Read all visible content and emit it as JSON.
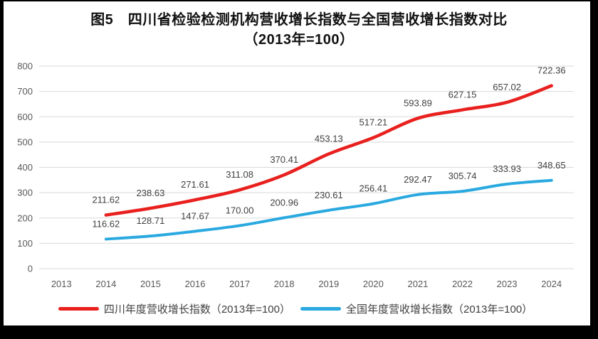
{
  "title": {
    "line1": "图5　四川省检验检测机构营收增长指数与全国营收增长指数对比",
    "line2": "（2013年=100）"
  },
  "chart_data": {
    "type": "line",
    "title": "图5 四川省检验检测机构营收增长指数与全国营收增长指数对比（2013年=100）",
    "xlabel": "",
    "ylabel": "",
    "categories": [
      "2013",
      "2014",
      "2015",
      "2016",
      "2017",
      "2018",
      "2019",
      "2020",
      "2021",
      "2022",
      "2023",
      "2024"
    ],
    "series": [
      {
        "name": "四川年度营收增长指数（2013年=100）",
        "color": "#e8201e",
        "values": [
          null,
          211.62,
          238.63,
          271.61,
          311.08,
          370.41,
          453.13,
          517.21,
          593.89,
          627.15,
          657.02,
          722.36
        ]
      },
      {
        "name": "全国年度营收增长指数（2013年=100）",
        "color": "#2aa9e0",
        "values": [
          null,
          116.62,
          128.71,
          147.67,
          170.0,
          200.96,
          230.61,
          256.41,
          292.47,
          305.74,
          333.93,
          348.65
        ]
      }
    ],
    "ylim": [
      0,
      800
    ],
    "y_ticks": [
      0,
      100,
      200,
      300,
      400,
      500,
      600,
      700,
      800
    ],
    "grid": true,
    "data_labels": true,
    "data_label_decimals": 2,
    "legend_position": "bottom"
  },
  "colors": {
    "grid": "#d9d9d9",
    "axis_text": "#595959",
    "data_label_text": "#404040",
    "background": "#ffffff",
    "border": "#000000"
  }
}
